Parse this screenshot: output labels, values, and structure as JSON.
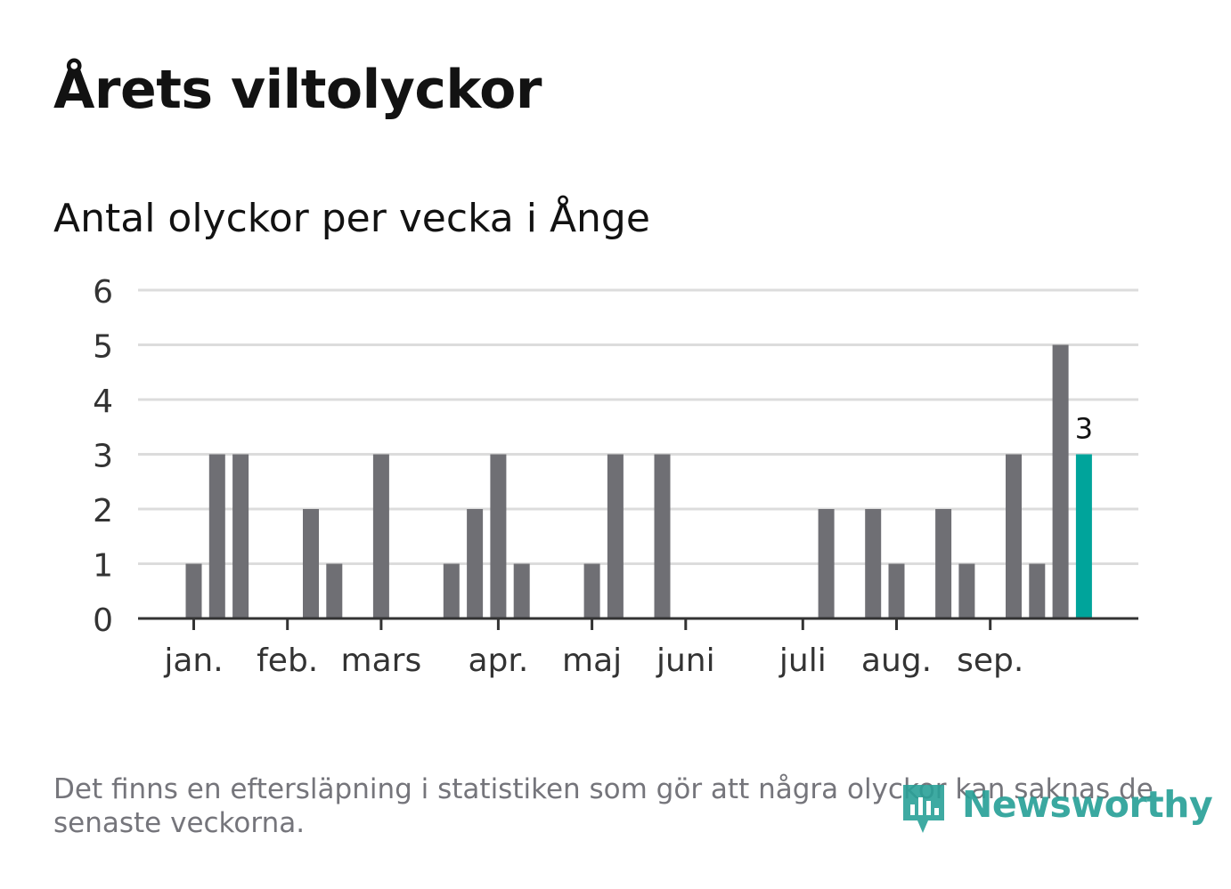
{
  "title": "Årets viltolyckor",
  "subtitle": "Antal olyckor per vecka i Ånge",
  "footnote": "Det finns en eftersläpning i statistiken som gör att några olyckor kan saknas de senaste veckorna.",
  "brand": {
    "name": "Newsworthy",
    "color": "#2aa198"
  },
  "chart_data": {
    "type": "bar",
    "title": "Antal olyckor per vecka i Ånge",
    "xlabel": "",
    "ylabel": "",
    "ylim": [
      0,
      6
    ],
    "yticks": [
      0,
      1,
      2,
      3,
      4,
      5,
      6
    ],
    "grid": true,
    "bar_color": "#6f6f74",
    "highlight_color": "#00a49b",
    "weeks": [
      1,
      2,
      3,
      4,
      5,
      6,
      7,
      8,
      9,
      10,
      11,
      12,
      13,
      14,
      15,
      16,
      17,
      18,
      19,
      20,
      21,
      22,
      23,
      24,
      25,
      26,
      27,
      28,
      29,
      30,
      31,
      32,
      33,
      34,
      35,
      36,
      37,
      38,
      39
    ],
    "values": [
      1,
      3,
      3,
      0,
      0,
      2,
      1,
      0,
      3,
      0,
      0,
      1,
      2,
      3,
      1,
      0,
      0,
      1,
      3,
      0,
      3,
      0,
      0,
      0,
      0,
      0,
      0,
      2,
      0,
      2,
      1,
      0,
      2,
      1,
      0,
      3,
      1,
      5,
      3
    ],
    "highlight_index": 38,
    "highlight_label": "3",
    "month_ticks": [
      {
        "label": "jan.",
        "week": 1
      },
      {
        "label": "feb.",
        "week": 5
      },
      {
        "label": "mars",
        "week": 9
      },
      {
        "label": "apr.",
        "week": 14
      },
      {
        "label": "maj",
        "week": 18
      },
      {
        "label": "juni",
        "week": 22
      },
      {
        "label": "juli",
        "week": 27
      },
      {
        "label": "aug.",
        "week": 31
      },
      {
        "label": "sep.",
        "week": 35
      }
    ]
  }
}
